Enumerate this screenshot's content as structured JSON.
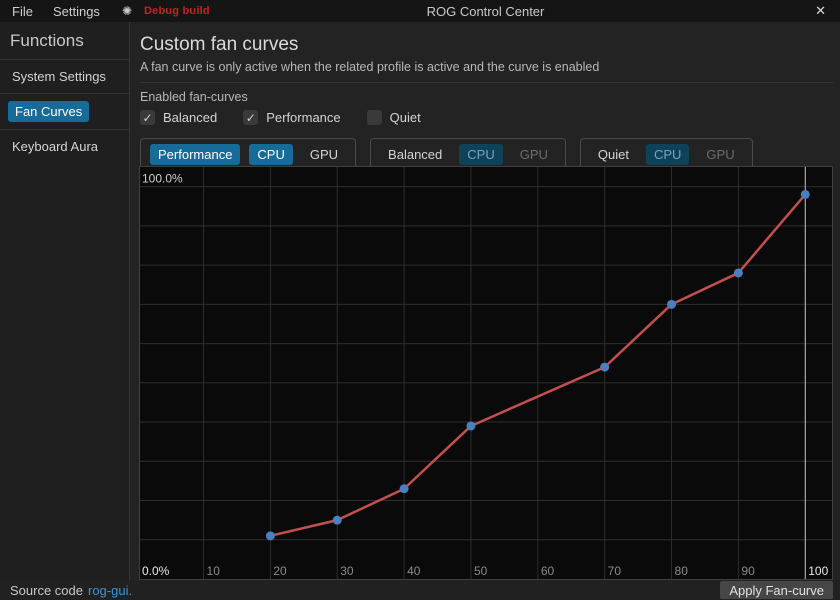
{
  "titlebar": {
    "menus": [
      "File",
      "Settings"
    ],
    "debug_label": "Debug build",
    "title": "ROG Control Center"
  },
  "icons": {
    "theme_sun": "✺",
    "close": "✕",
    "check": "✓"
  },
  "sidebar": {
    "heading": "Functions",
    "items": [
      {
        "label": "System Settings",
        "selected": false
      },
      {
        "label": "Fan Curves",
        "selected": true
      },
      {
        "label": "Keyboard Aura",
        "selected": false
      }
    ]
  },
  "main": {
    "title": "Custom fan curves",
    "subtitle": "A fan curve is only active when the related profile is active and the curve is enabled",
    "enabled_label": "Enabled fan-curves",
    "checkboxes": [
      {
        "label": "Balanced",
        "checked": true
      },
      {
        "label": "Performance",
        "checked": true
      },
      {
        "label": "Quiet",
        "checked": false
      }
    ],
    "profile_groups": [
      {
        "profile": "Performance",
        "profile_state": "selected",
        "cpu": "CPU",
        "cpu_state": "selected",
        "gpu": "GPU",
        "gpu_state": "normal"
      },
      {
        "profile": "Balanced",
        "profile_state": "normal",
        "cpu": "CPU",
        "cpu_state": "muted",
        "gpu": "GPU",
        "gpu_state": "dim"
      },
      {
        "profile": "Quiet",
        "profile_state": "normal",
        "cpu": "CPU",
        "cpu_state": "muted",
        "gpu": "GPU",
        "gpu_state": "dim"
      }
    ]
  },
  "chart_data": {
    "type": "line",
    "title": "",
    "series": [
      {
        "name": "Performance CPU fan curve",
        "x": [
          20,
          30,
          40,
          50,
          70,
          80,
          90,
          100
        ],
        "y": [
          11,
          15,
          23,
          39,
          54,
          70,
          78,
          98
        ]
      }
    ],
    "x_ticks": [
      10,
      20,
      30,
      40,
      50,
      60,
      70,
      80,
      90,
      100
    ],
    "highlighted_x_tick": 100,
    "y_gridlines": [
      10,
      20,
      30,
      40,
      50,
      60,
      70,
      80,
      90,
      100
    ],
    "y_max_label": "100.0%",
    "y_min_label": "0.0%",
    "xlim": [
      0.5,
      104
    ],
    "ylim": [
      0,
      105
    ],
    "grid": true,
    "legend": "none",
    "colors": {
      "line": "#c4504e",
      "point": "#4a7fc0",
      "grid": "#2e2e2e",
      "grid_highlight": "#c8c8c8",
      "tick_label": "#8b8b8b",
      "tick_label_bright": "#e8e8e8",
      "edge_label": "#cfcfcf"
    }
  },
  "statusbar": {
    "source_text": "Source code",
    "source_link": "rog-gui.",
    "apply_label": "Apply Fan-curve"
  }
}
